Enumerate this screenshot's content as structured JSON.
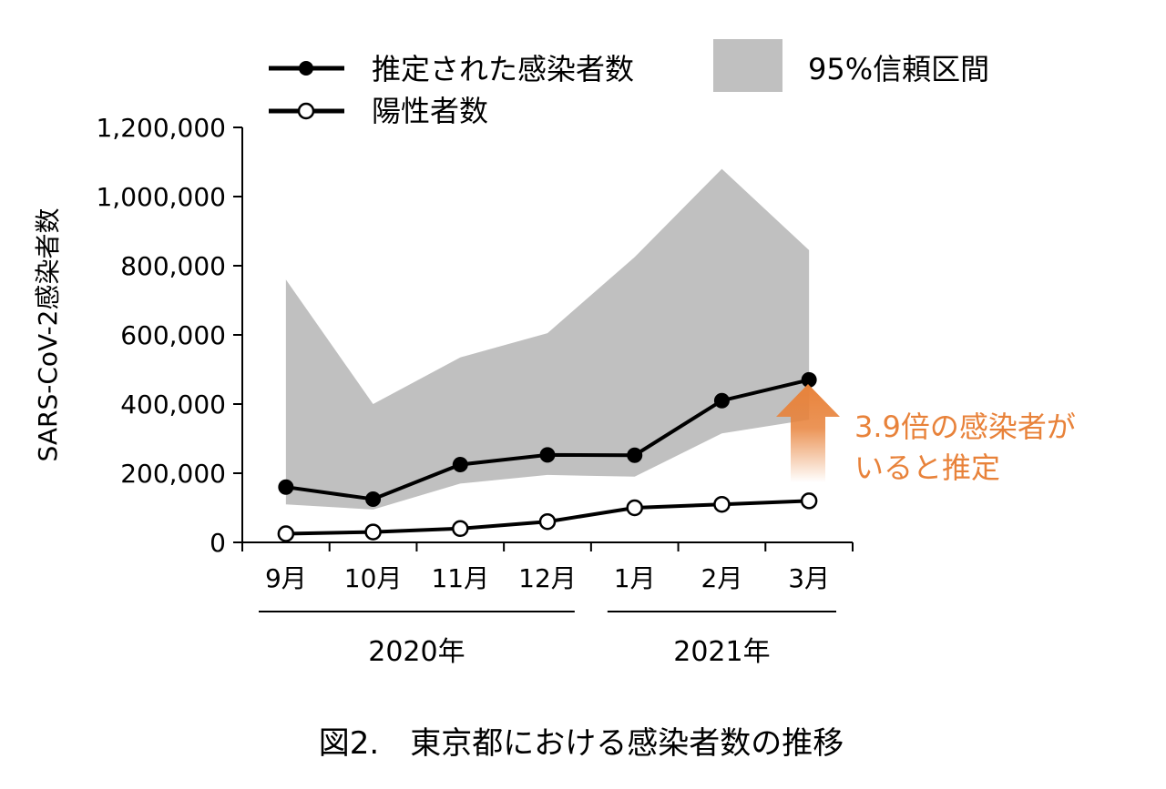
{
  "caption": "図2.　東京都における感染者数の推移",
  "chart_data": {
    "type": "line",
    "title": "",
    "ylabel": "SARS-CoV-2感染者数",
    "xlabel": "",
    "ylim": [
      0,
      1200000
    ],
    "yticks": [
      0,
      200000,
      400000,
      600000,
      800000,
      1000000,
      1200000
    ],
    "ytick_labels": [
      "0",
      "200,000",
      "400,000",
      "600,000",
      "800,000",
      "1,000,000",
      "1,200,000"
    ],
    "categories": [
      "9月",
      "10月",
      "11月",
      "12月",
      "1月",
      "2月",
      "3月"
    ],
    "year_groups": [
      {
        "label": "2020年",
        "from": 0,
        "to": 3
      },
      {
        "label": "2021年",
        "from": 4,
        "to": 6
      }
    ],
    "series": [
      {
        "name": "推定された感染者数",
        "marker": "filled-circle",
        "values": [
          160000,
          125000,
          225000,
          253000,
          252000,
          410000,
          470000
        ]
      },
      {
        "name": "陽性者数",
        "marker": "open-circle",
        "values": [
          25000,
          30000,
          40000,
          60000,
          100000,
          110000,
          120000
        ]
      }
    ],
    "confidence_band": {
      "name": "95%信頼区間",
      "upper": [
        760000,
        400000,
        535000,
        605000,
        825000,
        1080000,
        845000
      ],
      "lower": [
        110000,
        95000,
        170000,
        195000,
        190000,
        315000,
        355000
      ]
    },
    "annotation": {
      "lines": [
        "3.9倍の感染者が",
        "いると推定"
      ],
      "color": "#E8823A"
    },
    "legend_position": "top",
    "grid": false,
    "colors": {
      "band": "#C0C0C0",
      "line": "#000000",
      "annotation": "#E8823A"
    }
  }
}
